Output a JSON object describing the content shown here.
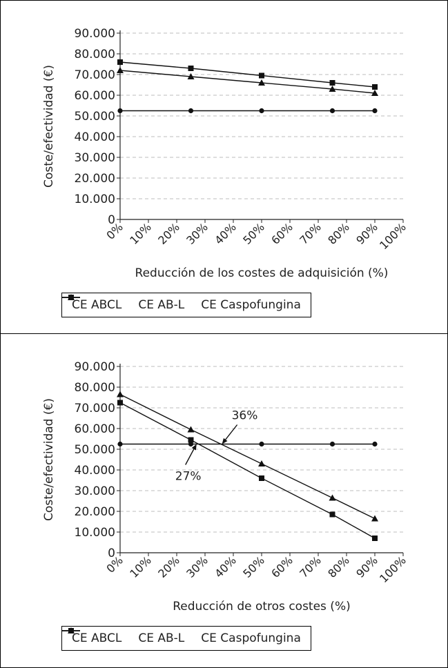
{
  "chart_data": [
    {
      "type": "line",
      "xlabel": "Reducción de los costes de adquisición (%)",
      "ylabel": "Coste/efectividad (€)",
      "ylim": [
        0,
        90000
      ],
      "xlim": [
        0,
        100
      ],
      "yticks": [
        "0",
        "10.000",
        "20.000",
        "30.000",
        "40.000",
        "50.000",
        "60.000",
        "70.000",
        "80.000",
        "90.000"
      ],
      "xticks": [
        "0%",
        "10%",
        "20%",
        "30%",
        "40%",
        "50%",
        "60%",
        "70%",
        "80%",
        "90%",
        "100%"
      ],
      "grid": "horizontal dashed",
      "legend_placement": "bottom",
      "x": [
        0,
        25,
        50,
        75,
        90
      ],
      "series": [
        {
          "name": "CE ABCL",
          "marker": "circle",
          "values": [
            52500,
            52500,
            52500,
            52500,
            52500
          ]
        },
        {
          "name": "CE AB-L",
          "marker": "triangle",
          "values": [
            72000,
            69000,
            66000,
            63000,
            61000
          ]
        },
        {
          "name": "CE Caspofungina",
          "marker": "square",
          "values": [
            76000,
            73000,
            69500,
            66000,
            64000
          ]
        }
      ]
    },
    {
      "type": "line",
      "xlabel": "Reducción de otros costes (%)",
      "ylabel": "Coste/efectividad (€)",
      "ylim": [
        0,
        90000
      ],
      "xlim": [
        0,
        100
      ],
      "yticks": [
        "0",
        "10.000",
        "20.000",
        "30.000",
        "40.000",
        "50.000",
        "60.000",
        "70.000",
        "80.000",
        "90.000"
      ],
      "xticks": [
        "0%",
        "10%",
        "20%",
        "30%",
        "40%",
        "50%",
        "60%",
        "70%",
        "80%",
        "90%",
        "100%"
      ],
      "grid": "horizontal dashed",
      "legend_placement": "bottom",
      "x": [
        0,
        25,
        50,
        75,
        90
      ],
      "series": [
        {
          "name": "CE ABCL",
          "marker": "circle",
          "values": [
            52500,
            52500,
            52500,
            52500,
            52500
          ]
        },
        {
          "name": "CE AB-L",
          "marker": "triangle",
          "values": [
            76500,
            59500,
            43000,
            26500,
            16500
          ]
        },
        {
          "name": "CE Caspofungina",
          "marker": "square",
          "values": [
            72500,
            54500,
            36000,
            18500,
            7000
          ]
        }
      ],
      "annotations": [
        {
          "text": "36%",
          "target": [
            36,
            52500
          ]
        },
        {
          "text": "27%",
          "target": [
            27,
            52500
          ]
        }
      ]
    }
  ]
}
